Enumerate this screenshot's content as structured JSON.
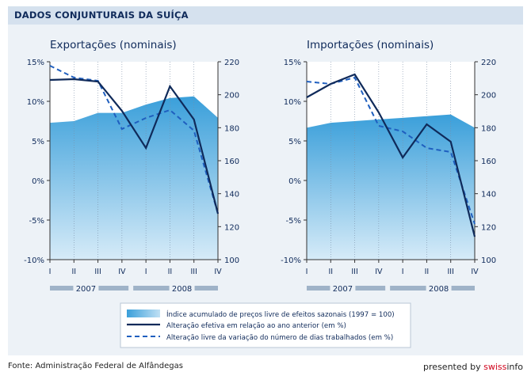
{
  "header": {
    "title": "DADOS CONJUNTURAIS DA SUÍÇA"
  },
  "footer": {
    "source": "Fonte: Administração Federal de Alfândegas",
    "presented_by": "presented by ",
    "brand_red": "swiss",
    "brand_dark": "info"
  },
  "colors": {
    "area_top": "#3a9fda",
    "area_bottom": "#cfe7f6",
    "line": "#0f2a5a",
    "header_bg": "#d5e1ee",
    "panel_bg": "#edf2f7",
    "year_bar": "#9fb3c8"
  },
  "legend": {
    "area": "Índice acumulado de preços livre de efeitos sazonais (1997 = 100)",
    "solid": "Alteração efetiva em relação ao ano anterior (em %)",
    "dashed": "Alteração livre da variação do número de dias trabalhados (em %)"
  },
  "chart_data": [
    {
      "type": "line",
      "title": "Exportações (nominais)",
      "categories": [
        "I",
        "II",
        "III",
        "IV",
        "I",
        "II",
        "III",
        "IV"
      ],
      "year_labels": [
        "2007",
        "2008"
      ],
      "left_axis": {
        "ticks": [
          "15%",
          "10%",
          "5%",
          "0%",
          "-5%",
          "-10%"
        ],
        "range": [
          -10,
          15
        ]
      },
      "right_axis": {
        "ticks": [
          "220",
          "200",
          "180",
          "160",
          "140",
          "120",
          "100"
        ],
        "range": [
          100,
          220
        ]
      },
      "series": [
        {
          "kind": "area",
          "axis": "right",
          "values": [
            183,
            184,
            189,
            189,
            194,
            198,
            199,
            186
          ]
        },
        {
          "kind": "solid",
          "axis": "left",
          "values": [
            12.7,
            12.8,
            12.5,
            8.8,
            4.1,
            11.9,
            7.7,
            -4.2
          ]
        },
        {
          "kind": "dashed",
          "axis": "left",
          "values": [
            14.5,
            13.0,
            12.6,
            6.5,
            7.9,
            8.9,
            6.3,
            -4.2
          ]
        }
      ]
    },
    {
      "type": "line",
      "title": "Importações (nominais)",
      "categories": [
        "I",
        "II",
        "III",
        "IV",
        "I",
        "II",
        "III",
        "IV"
      ],
      "year_labels": [
        "2007",
        "2008"
      ],
      "left_axis": {
        "ticks": [
          "15%",
          "10%",
          "5%",
          "0%",
          "-5%",
          "-10%"
        ],
        "range": [
          -10,
          15
        ]
      },
      "right_axis": {
        "ticks": [
          "220",
          "200",
          "180",
          "160",
          "140",
          "120",
          "100"
        ],
        "range": [
          100,
          220
        ]
      },
      "series": [
        {
          "kind": "area",
          "axis": "right",
          "values": [
            180,
            183,
            184,
            185,
            186,
            187,
            188,
            180
          ]
        },
        {
          "kind": "solid",
          "axis": "left",
          "values": [
            10.5,
            12.2,
            13.4,
            8.6,
            2.9,
            7.1,
            4.9,
            -7.1
          ]
        },
        {
          "kind": "dashed",
          "axis": "left",
          "values": [
            12.5,
            12.2,
            13.0,
            6.9,
            6.2,
            4.1,
            3.6,
            -5.5
          ]
        }
      ]
    }
  ]
}
